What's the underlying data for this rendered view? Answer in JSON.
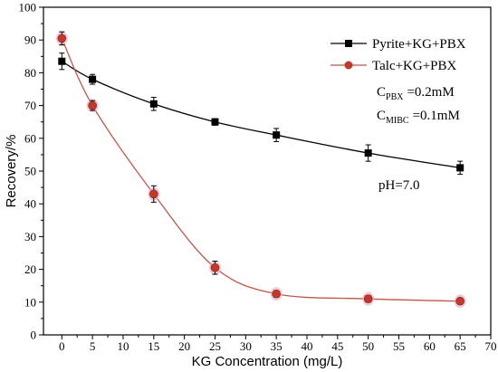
{
  "chart_data": {
    "type": "line",
    "xlabel": "KG Concentration (mg/L)",
    "ylabel": "Recovery/%",
    "xlim": [
      -3,
      70
    ],
    "ylim": [
      0,
      100
    ],
    "x_ticks": [
      0,
      5,
      10,
      15,
      20,
      25,
      30,
      35,
      40,
      45,
      50,
      55,
      60,
      65,
      70
    ],
    "y_ticks": [
      0,
      10,
      20,
      30,
      40,
      50,
      60,
      70,
      80,
      90,
      100
    ],
    "grid": false,
    "legend_position": "top-right",
    "series": [
      {
        "name": "Pyrite+KG+PBX",
        "color": "#000000",
        "marker": "square",
        "x": [
          0,
          5,
          15,
          25,
          35,
          50,
          65
        ],
        "y": [
          83.5,
          78.0,
          70.5,
          65.0,
          61.0,
          55.5,
          51.0
        ],
        "err": [
          2.5,
          1.5,
          2.0,
          1.0,
          2.0,
          2.5,
          2.0
        ]
      },
      {
        "name": "Talc+KG+PBX",
        "color": "#c0392b",
        "line_color": "#c0564a",
        "marker": "circle",
        "x": [
          0,
          5,
          15,
          25,
          35,
          50,
          65
        ],
        "y": [
          90.5,
          70.0,
          43.0,
          20.5,
          12.5,
          11.0,
          10.3
        ],
        "err": [
          2.0,
          1.5,
          2.5,
          2.0,
          1.0,
          1.0,
          0.8
        ]
      }
    ],
    "annotations": {
      "cpbx_main": "C",
      "cpbx_sub": "PBX",
      "cpbx_value": "=0.2mM",
      "cmibc_main": "C",
      "cmibc_sub": "MIBC",
      "cmibc_value": "=0.1mM",
      "ph": "pH=7.0"
    }
  }
}
